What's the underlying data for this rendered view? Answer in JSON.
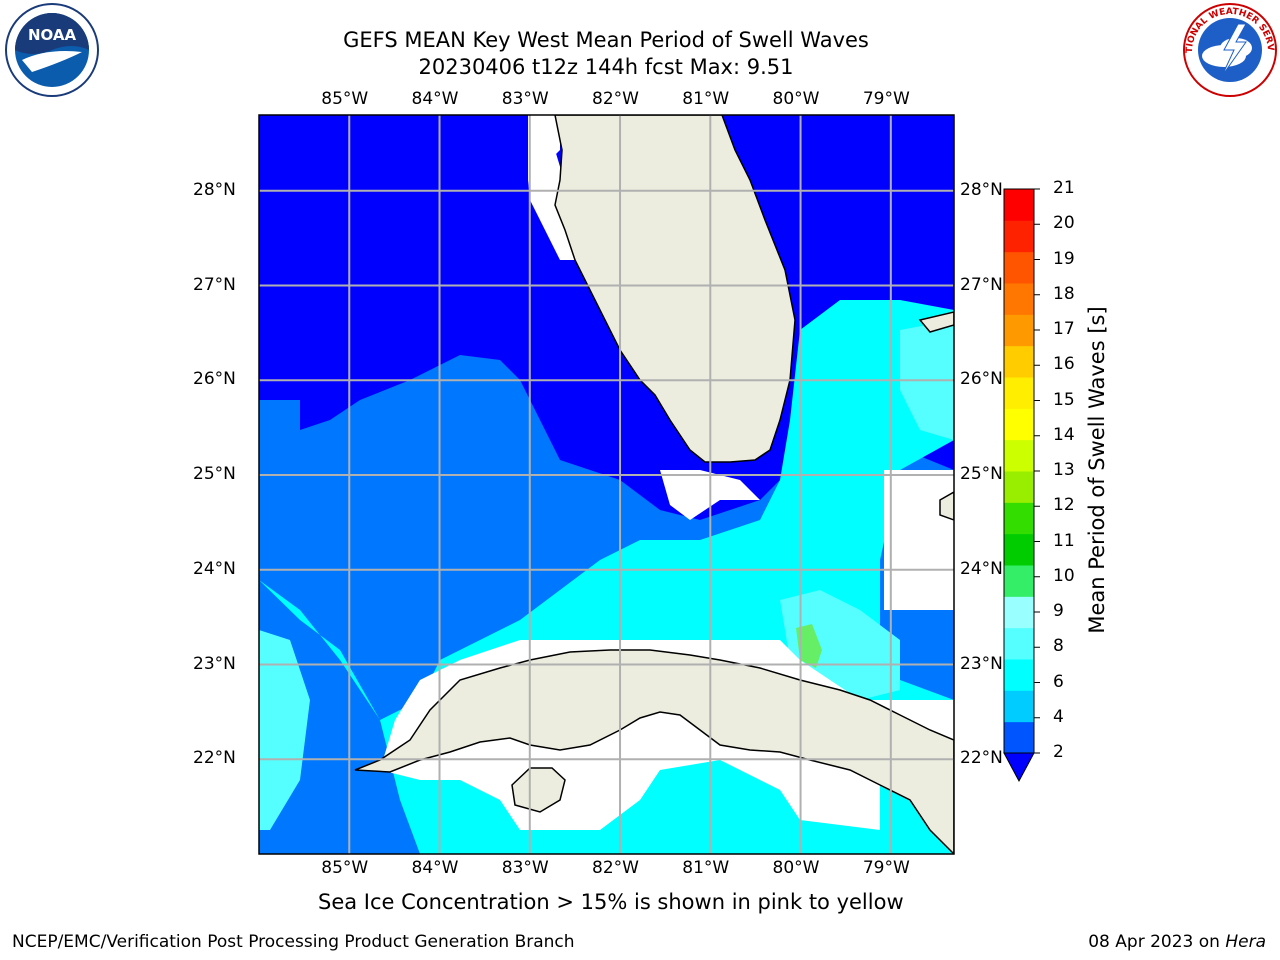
{
  "title": {
    "line1": "GEFS MEAN Key West Mean Period of Swell Waves",
    "line2": "20230406 t12z 144h fcst   Max: 9.51"
  },
  "note": "Sea Ice Concentration > 15% is shown in pink to yellow",
  "footer": {
    "left": "NCEP/EMC/Verification Post Processing Product Generation Branch",
    "date": "08 Apr 2023 on ",
    "machine": "Hera"
  },
  "logos": {
    "noaa": "NOAA",
    "nws": "NATIONAL WEATHER SERVICE"
  },
  "axes": {
    "lon_ticks": [
      "85°W",
      "84°W",
      "83°W",
      "82°W",
      "81°W",
      "80°W",
      "79°W"
    ],
    "lat_ticks": [
      "28°N",
      "27°N",
      "26°N",
      "25°N",
      "24°N",
      "23°N",
      "22°N"
    ],
    "lon_range": [
      -86,
      -78.3
    ],
    "lat_range": [
      21.0,
      28.8
    ]
  },
  "colorbar": {
    "title": "Mean Period of Swell Waves [s]",
    "ticks": [
      "21",
      "20",
      "19",
      "18",
      "17",
      "16",
      "15",
      "14",
      "13",
      "12",
      "11",
      "10",
      "9",
      "8",
      "6",
      "4",
      "2"
    ],
    "colors": [
      "#0055ff",
      "#00ccff",
      "#00ffff",
      "#55ffff",
      "#99ffff",
      "#33ee66",
      "#00cc00",
      "#33dd00",
      "#99ee00",
      "#ccff00",
      "#ffff00",
      "#ffee00",
      "#ffcc00",
      "#ff9900",
      "#ff7700",
      "#ff5500",
      "#ff2200",
      "#ff0000"
    ],
    "under_color": "#0000ff"
  },
  "map_colors": {
    "land": "#eceddf",
    "coast": "#000000",
    "grid": "#b0b0b0",
    "deep": "#0000ff",
    "mid": "#0077ff",
    "cyan": "#00ffff",
    "light": "#55ffff",
    "green": "#66ee66"
  }
}
